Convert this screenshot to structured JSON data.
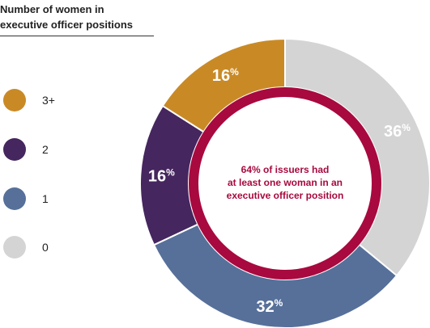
{
  "legend": {
    "title_line1": "Number of women in",
    "title_line2": "executive officer positions",
    "items": [
      {
        "label": "3+",
        "color": "#c98a26"
      },
      {
        "label": "2",
        "color": "#45265e"
      },
      {
        "label": "1",
        "color": "#56709a"
      },
      {
        "label": "0",
        "color": "#d4d4d4"
      }
    ]
  },
  "center_text": {
    "line1": "64% of issuers had",
    "line2": "at least one woman in an",
    "line3": "executive officer position",
    "ring_color": "#a8093f"
  },
  "chart_data": {
    "type": "pie",
    "donut": true,
    "title": "Number of women in executive officer positions",
    "categories": [
      "0",
      "1",
      "2",
      "3+"
    ],
    "values": [
      36,
      32,
      16,
      16
    ],
    "value_labels": [
      "36",
      "32",
      "16",
      "16"
    ],
    "unit": "%",
    "colors": [
      "#d4d4d4",
      "#56709a",
      "#45265e",
      "#c98a26"
    ],
    "start_angle": "12 o'clock",
    "direction": "clockwise",
    "legend_position": "left"
  }
}
